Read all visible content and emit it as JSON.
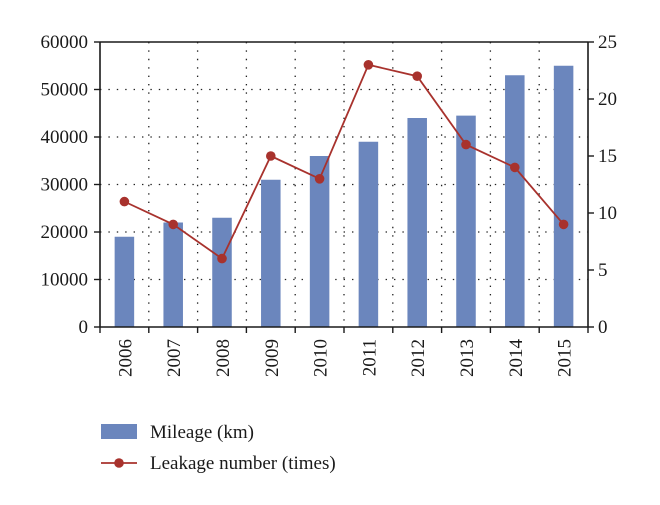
{
  "chart_data": {
    "type": "bar",
    "categories": [
      "2006",
      "2007",
      "2008",
      "2009",
      "2010",
      "2011",
      "2012",
      "2013",
      "2014",
      "2015"
    ],
    "series": [
      {
        "name": "Mileage (km)",
        "type": "bar",
        "axis": "left",
        "values": [
          19000,
          22000,
          23000,
          31000,
          36000,
          39000,
          44000,
          44500,
          53000,
          55000
        ]
      },
      {
        "name": "Leakage number (times)",
        "type": "line",
        "axis": "right",
        "values": [
          11,
          9,
          6,
          15,
          13,
          23,
          22,
          16,
          14,
          9
        ]
      }
    ],
    "ylim_left": [
      0,
      60000
    ],
    "yticks_left": [
      0,
      10000,
      20000,
      30000,
      40000,
      50000,
      60000
    ],
    "ylim_right": [
      0,
      25
    ],
    "yticks_right": [
      0,
      5,
      10,
      15,
      20,
      25
    ],
    "grid": "dotted",
    "legend_position": "bottom",
    "colors": {
      "bar": "#6b86bd",
      "line": "#a8322d",
      "axis": "#1a1a1a",
      "grid": "#222222"
    }
  }
}
